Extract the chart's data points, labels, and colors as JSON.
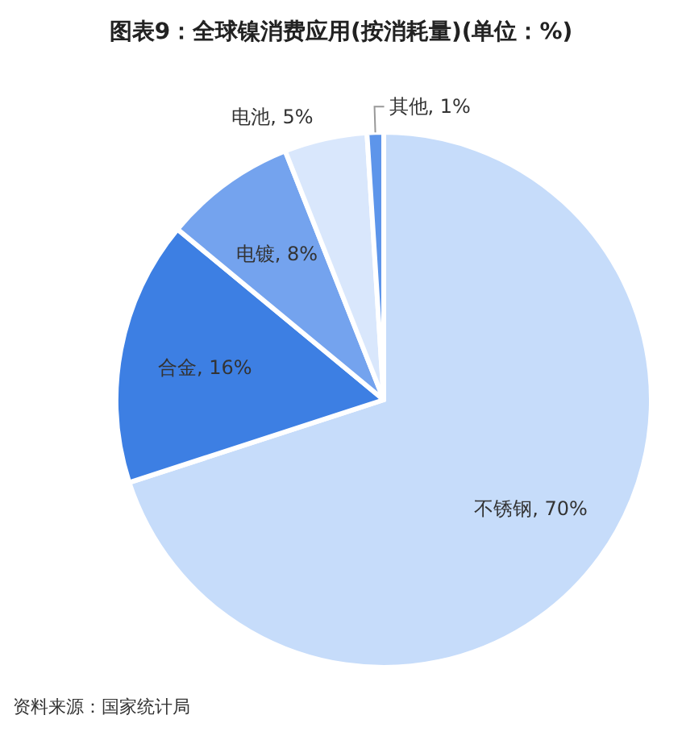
{
  "chart_data": {
    "type": "pie",
    "title": "图表9：全球镍消费应用(按消耗量)(单位：%)",
    "categories": [
      "不锈钢",
      "合金",
      "电镀",
      "电池",
      "其他"
    ],
    "values": [
      70,
      16,
      8,
      5,
      1
    ],
    "value_labels": [
      "70%",
      "16%",
      "8%",
      "5%",
      "1%"
    ],
    "colors": [
      "#c6dcfa",
      "#3d7fe3",
      "#74a3ee",
      "#d9e7fc",
      "#5d95ea"
    ],
    "annotations": [
      "资料来源：国家统计局"
    ]
  }
}
